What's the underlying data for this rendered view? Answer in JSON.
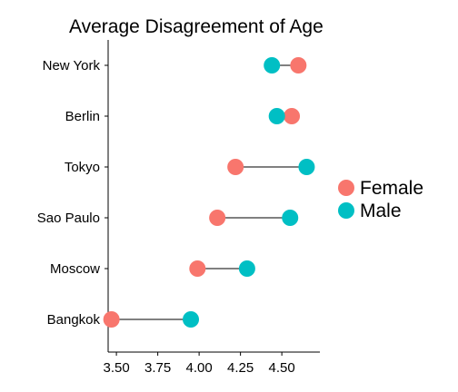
{
  "chart_data": {
    "type": "dumbbell",
    "title": "Average Disagreement of Age",
    "xlabel": "",
    "ylabel": "",
    "categories": [
      "New York",
      "Berlin",
      "Tokyo",
      "Sao Paulo",
      "Moscow",
      "Bangkok"
    ],
    "series": [
      {
        "name": "Female",
        "color": "#F8766D",
        "values": [
          4.6,
          4.56,
          4.22,
          4.11,
          3.99,
          3.47
        ]
      },
      {
        "name": "Male",
        "color": "#00BFC4",
        "values": [
          4.44,
          4.47,
          4.65,
          4.55,
          4.29,
          3.95
        ]
      }
    ],
    "xlim": [
      3.45,
      4.73
    ],
    "xticks": [
      3.5,
      3.75,
      4.0,
      4.25,
      4.5
    ],
    "xtick_labels": [
      "3.50",
      "3.75",
      "4.00",
      "4.25",
      "4.50"
    ],
    "grid": false,
    "legend_position": "right"
  }
}
